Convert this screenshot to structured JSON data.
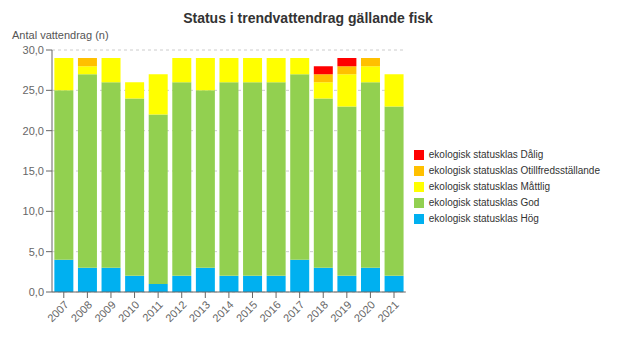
{
  "chart_data": {
    "type": "bar",
    "stacked": true,
    "title": "Status i trendvattendrag gällande fisk",
    "ylabel": "Antal vattendrag (n)",
    "categories": [
      "2007",
      "2008",
      "2009",
      "2010",
      "2011",
      "2012",
      "2013",
      "2014",
      "2015",
      "2016",
      "2017",
      "2018",
      "2019",
      "2020",
      "2021"
    ],
    "series": [
      {
        "name": "ekologisk statusklas Hög",
        "color": "#00b0f0",
        "values": [
          4,
          3,
          3,
          2,
          1,
          2,
          3,
          2,
          2,
          2,
          4,
          3,
          2,
          3,
          2
        ]
      },
      {
        "name": "ekologisk statusklas God",
        "color": "#92d050",
        "values": [
          21,
          24,
          23,
          22,
          21,
          24,
          22,
          24,
          24,
          24,
          23,
          21,
          21,
          23,
          21
        ]
      },
      {
        "name": "ekologisk statusklas Måttlig",
        "color": "#ffff00",
        "values": [
          4,
          1,
          3,
          2,
          5,
          3,
          4,
          3,
          3,
          3,
          2,
          2,
          4,
          2,
          4
        ]
      },
      {
        "name": "ekologisk statusklas Otillfredsställande",
        "color": "#ffc000",
        "values": [
          0,
          1,
          0,
          0,
          0,
          0,
          0,
          0,
          0,
          0,
          0,
          1,
          1,
          1,
          0
        ]
      },
      {
        "name": "ekologisk statusklas Dålig",
        "color": "#ff0000",
        "values": [
          0,
          0,
          0,
          0,
          0,
          0,
          0,
          0,
          0,
          0,
          0,
          1,
          1,
          0,
          0
        ]
      }
    ],
    "ylim": [
      0,
      30
    ],
    "yticks": [
      {
        "value": 0,
        "label": "0,0"
      },
      {
        "value": 5,
        "label": "5,0"
      },
      {
        "value": 10,
        "label": "10,0"
      },
      {
        "value": 15,
        "label": "15,0"
      },
      {
        "value": 20,
        "label": "20,0"
      },
      {
        "value": 25,
        "label": "25,0"
      },
      {
        "value": 30,
        "label": "30,0"
      }
    ],
    "grid": true,
    "legend": "right"
  }
}
